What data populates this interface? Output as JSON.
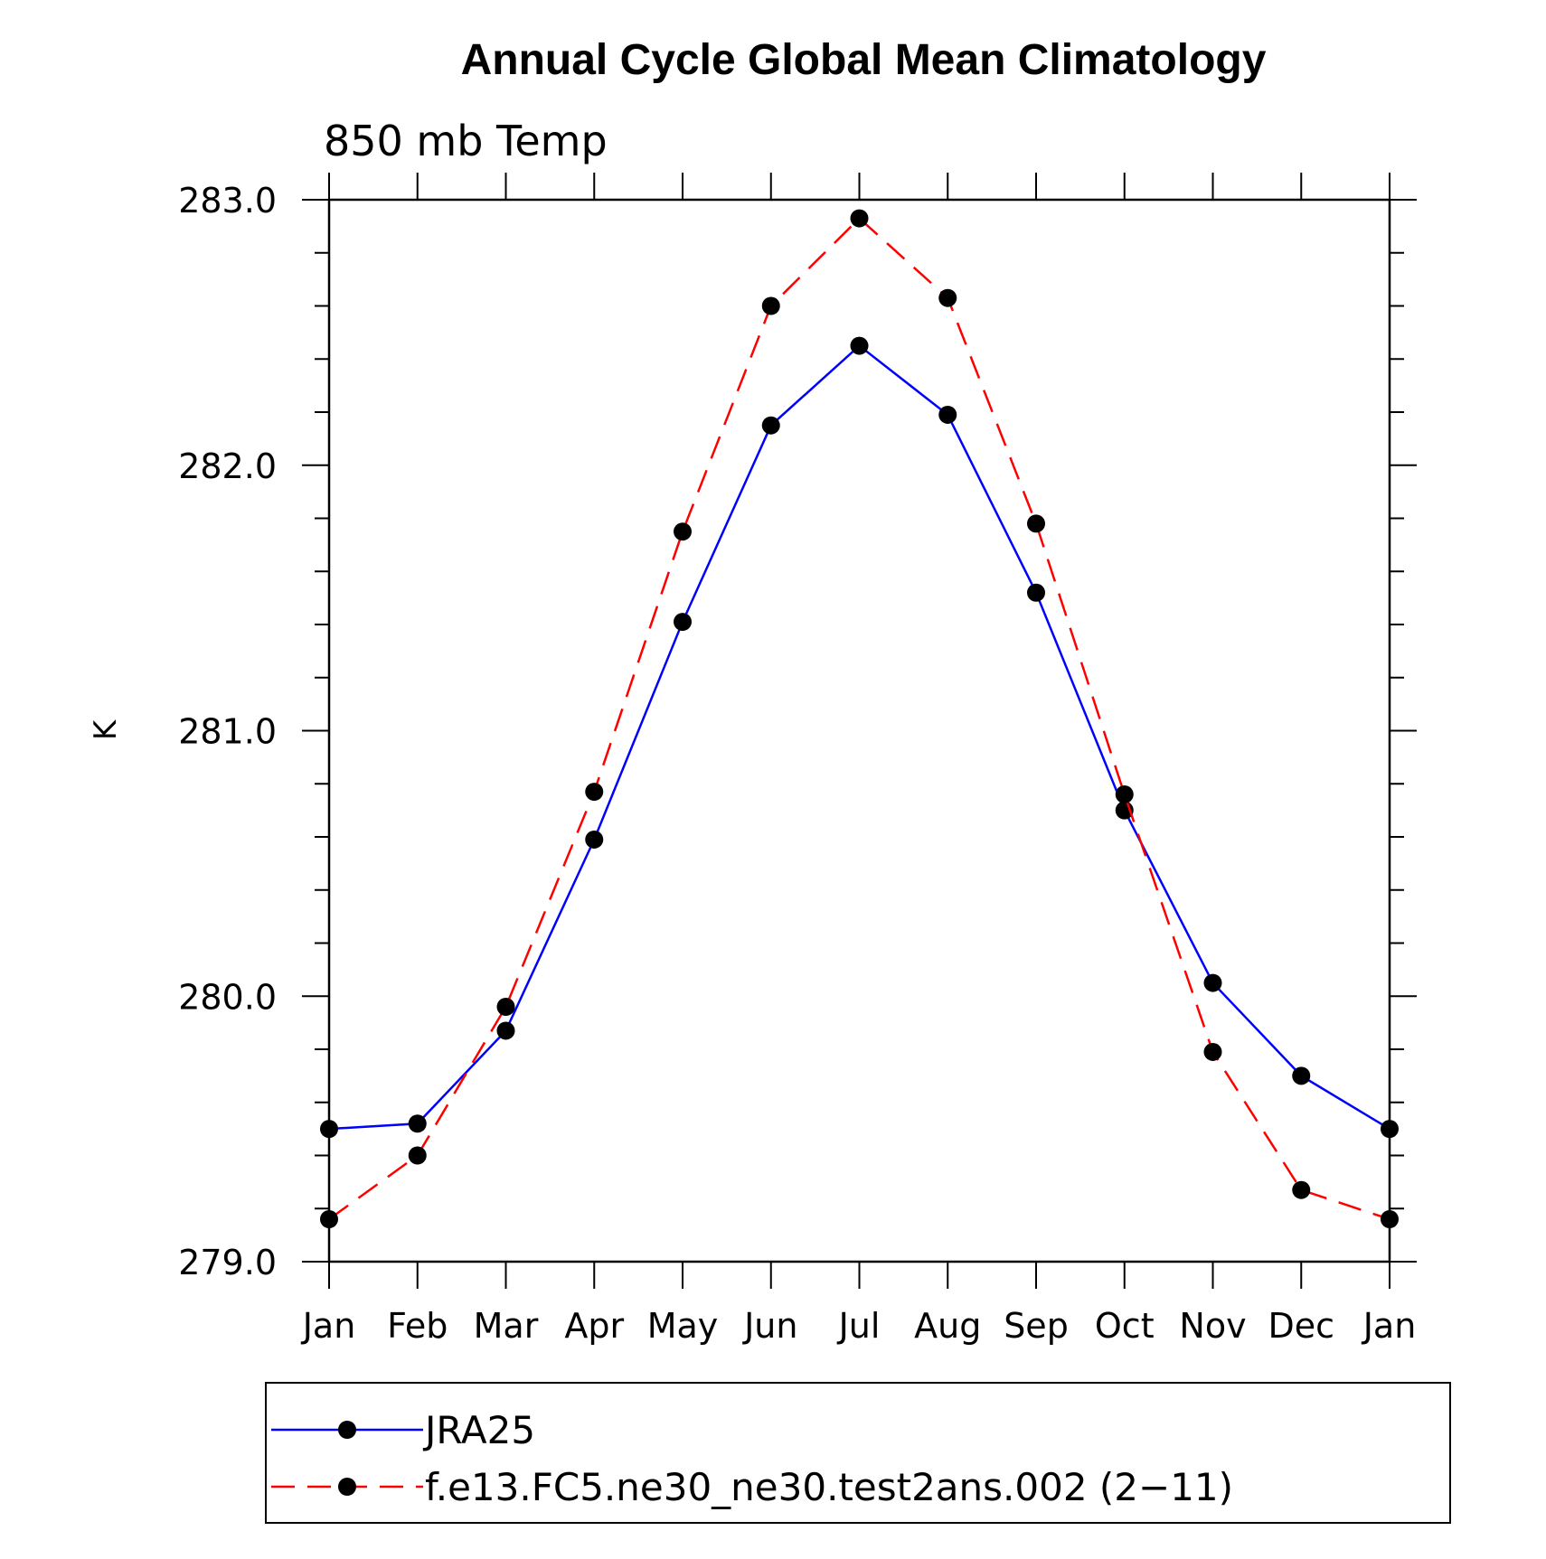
{
  "chart_data": {
    "type": "line",
    "title": "Annual Cycle Global Mean Climatology",
    "subtitle": "850 mb Temp",
    "ylabel": "K",
    "xlabel": "",
    "categories": [
      "Jan",
      "Feb",
      "Mar",
      "Apr",
      "May",
      "Jun",
      "Jul",
      "Aug",
      "Sep",
      "Oct",
      "Nov",
      "Dec",
      "Jan"
    ],
    "ylim": [
      279.0,
      283.0
    ],
    "yticks": [
      "279.0",
      "280.0",
      "281.0",
      "282.0",
      "283.0"
    ],
    "series": [
      {
        "name": "JRA25",
        "color": "#0000ff",
        "dash": "solid",
        "marker": "filled-circle",
        "values": [
          279.5,
          279.52,
          279.87,
          280.59,
          281.41,
          282.15,
          282.45,
          282.19,
          281.52,
          280.7,
          280.05,
          279.7,
          279.5
        ]
      },
      {
        "name": "f.e13.FC5.ne30_ne30.test2ans.002 (2−11)",
        "color": "#ff0000",
        "dash": "dashed",
        "marker": "filled-circle",
        "values": [
          279.16,
          279.4,
          279.96,
          280.77,
          281.75,
          282.6,
          282.93,
          282.63,
          281.78,
          280.76,
          279.79,
          279.27,
          279.16
        ]
      }
    ],
    "legend_position": "bottom",
    "grid": false
  }
}
